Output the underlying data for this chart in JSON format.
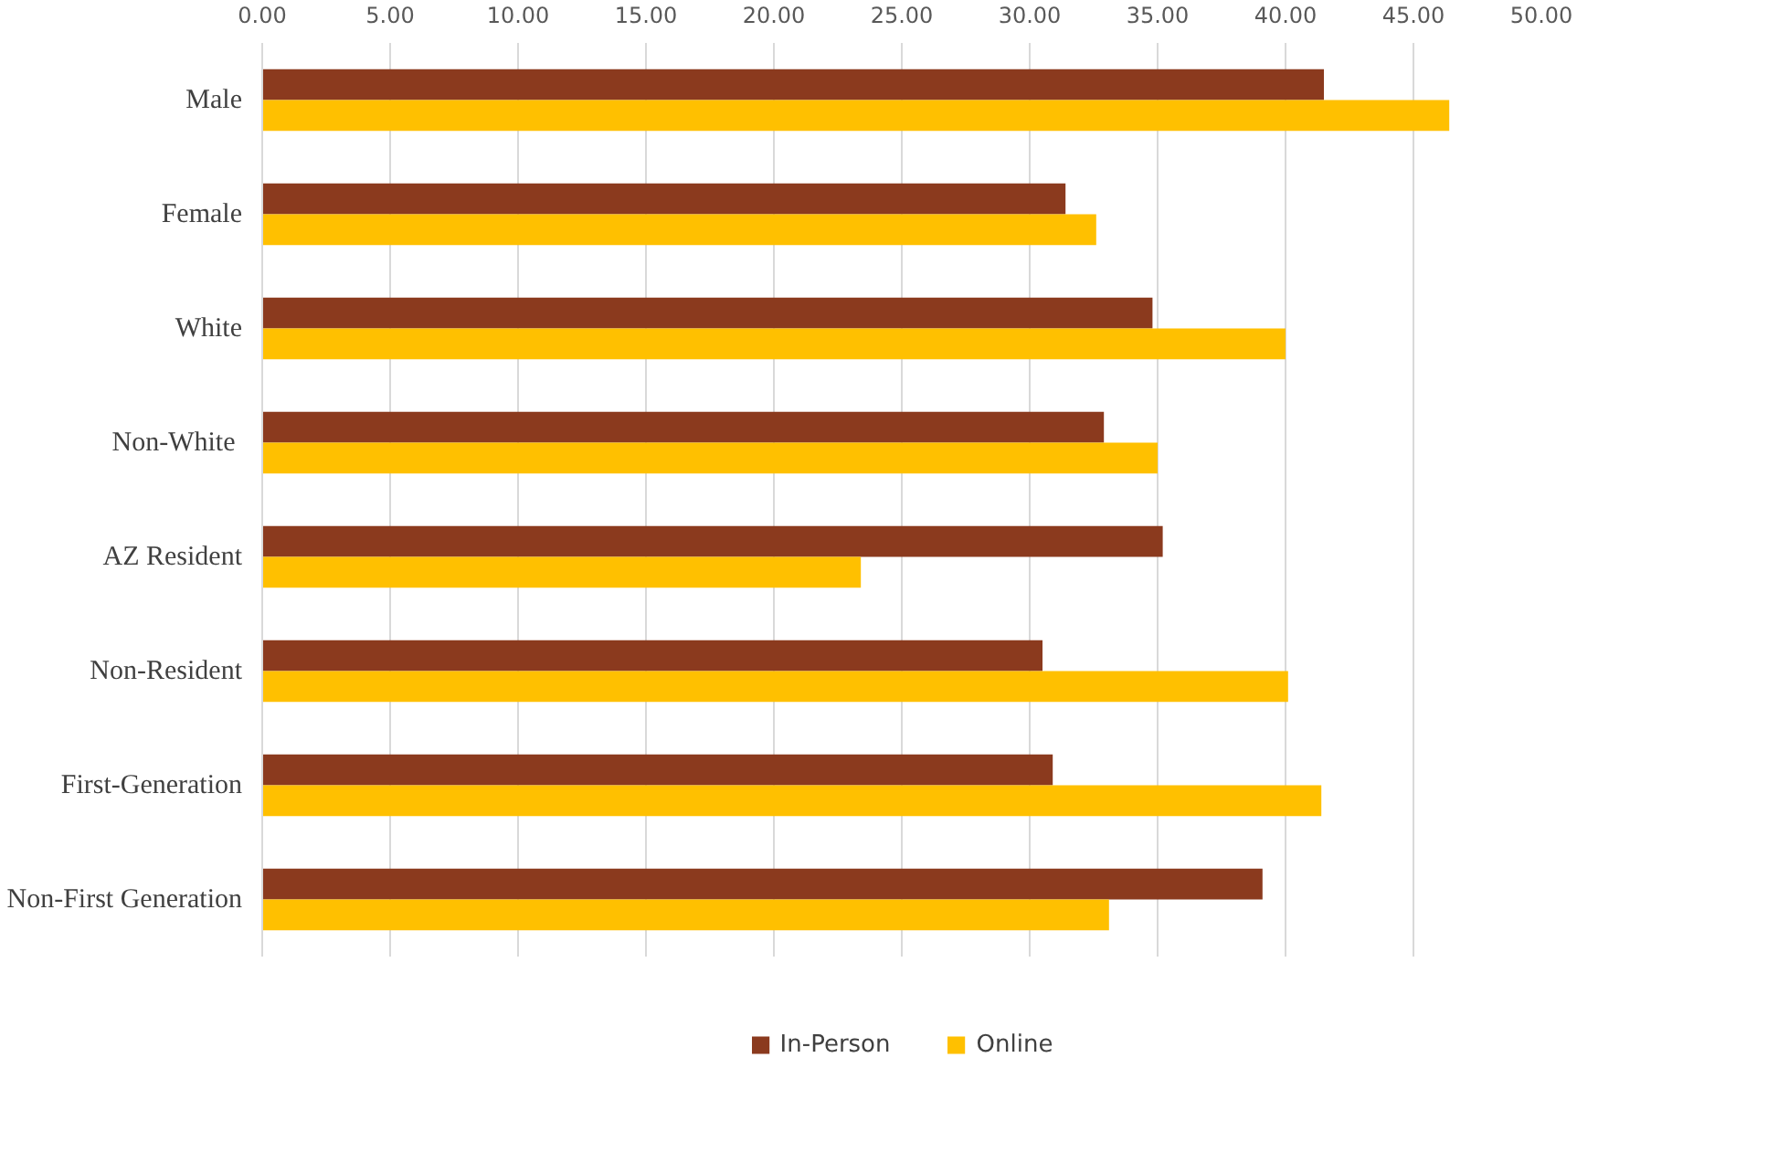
{
  "chart_data": {
    "type": "bar",
    "orientation": "horizontal",
    "categories": [
      "Male",
      "Female",
      "White",
      "Non-White ",
      "AZ Resident",
      "Non-Resident",
      "First-Generation",
      "Non-First Generation"
    ],
    "series": [
      {
        "name": "In-Person",
        "color": "#8b3a1e",
        "values": [
          41.5,
          31.4,
          34.8,
          32.9,
          35.2,
          30.5,
          30.9,
          39.1
        ]
      },
      {
        "name": "Online",
        "color": "#ffc000",
        "values": [
          46.4,
          32.6,
          40.0,
          35.0,
          23.4,
          40.1,
          41.4,
          33.1
        ]
      }
    ],
    "xlim": [
      0,
      50
    ],
    "xticks": [
      {
        "value": 0,
        "label": "0.00"
      },
      {
        "value": 5,
        "label": "5.00"
      },
      {
        "value": 10,
        "label": "10.00"
      },
      {
        "value": 15,
        "label": "15.00"
      },
      {
        "value": 20,
        "label": "20.00"
      },
      {
        "value": 25,
        "label": "25.00"
      },
      {
        "value": 30,
        "label": "30.00"
      },
      {
        "value": 35,
        "label": "35.00"
      },
      {
        "value": 40,
        "label": "40.00"
      },
      {
        "value": 45,
        "label": "45.00"
      },
      {
        "value": 50,
        "label": "50.00"
      }
    ],
    "grid": "x",
    "legend": "bottom"
  }
}
